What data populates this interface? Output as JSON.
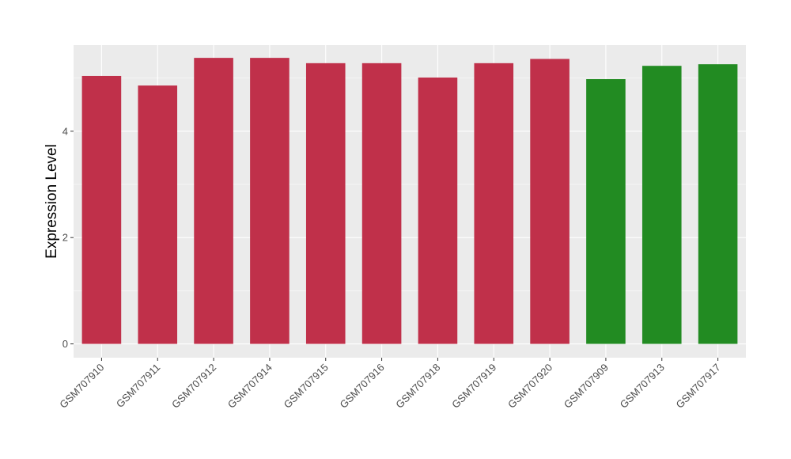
{
  "chart_data": {
    "type": "bar",
    "xlabel": "",
    "ylabel": "Expression Level",
    "ylim": [
      -0.26,
      5.62
    ],
    "yticks": [
      0,
      2,
      4
    ],
    "grid": true,
    "categories": [
      "GSM707910",
      "GSM707911",
      "GSM707912",
      "GSM707914",
      "GSM707915",
      "GSM707916",
      "GSM707918",
      "GSM707919",
      "GSM707920",
      "GSM707909",
      "GSM707913",
      "GSM707917"
    ],
    "values": [
      5.04,
      4.86,
      5.38,
      5.38,
      5.28,
      5.28,
      5.01,
      5.28,
      5.36,
      4.98,
      5.23,
      5.26
    ],
    "bar_colors": [
      "#c0304a",
      "#c0304a",
      "#c0304a",
      "#c0304a",
      "#c0304a",
      "#c0304a",
      "#c0304a",
      "#c0304a",
      "#c0304a",
      "#228b22",
      "#228b22",
      "#228b22"
    ],
    "panel_background": "#ebebeb",
    "grid_color": "#ffffff"
  }
}
